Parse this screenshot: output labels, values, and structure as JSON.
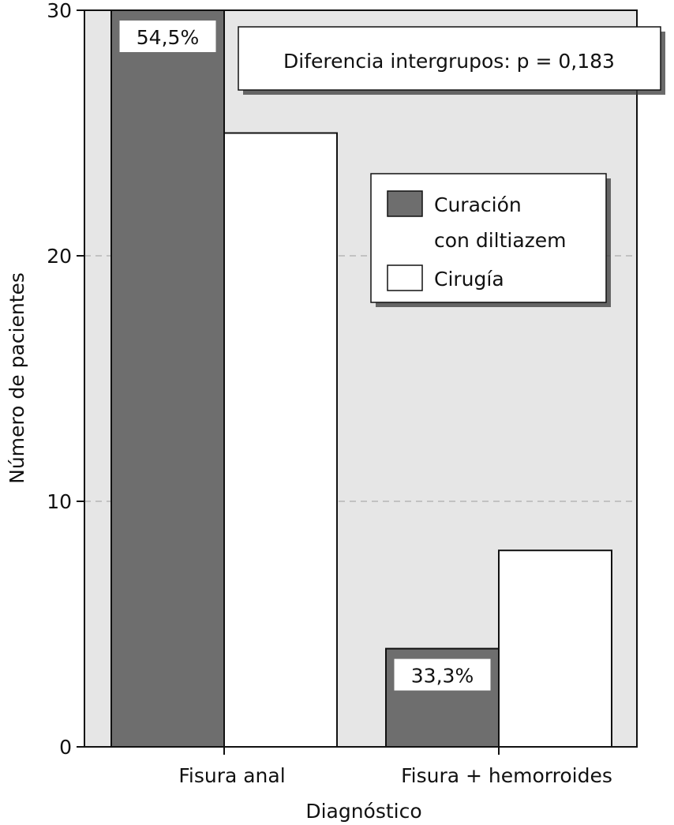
{
  "chart_data": {
    "type": "bar",
    "xlabel": "Diagnóstico",
    "ylabel": "Número de pacientes",
    "categories": [
      "Fisura anal",
      "Fisura + hemorroides"
    ],
    "series": [
      {
        "name": "Curación con diltiazem",
        "name_lines": [
          "Curación",
          "con diltiazem"
        ],
        "values": [
          30,
          4
        ],
        "color": "#6e6e6e"
      },
      {
        "name": "Cirugía",
        "name_lines": [
          "Cirugía"
        ],
        "values": [
          25,
          8
        ],
        "color": "#ffffff"
      }
    ],
    "bar_labels": [
      "54,5%",
      "33,3%"
    ],
    "annotation": "Diferencia intergrupos: p = 0,183",
    "ylim": [
      0,
      30
    ],
    "yticks": [
      0,
      10,
      20,
      30
    ],
    "grid": true,
    "legend_position": "upper-right",
    "plot_background": "#e6e6e6"
  }
}
